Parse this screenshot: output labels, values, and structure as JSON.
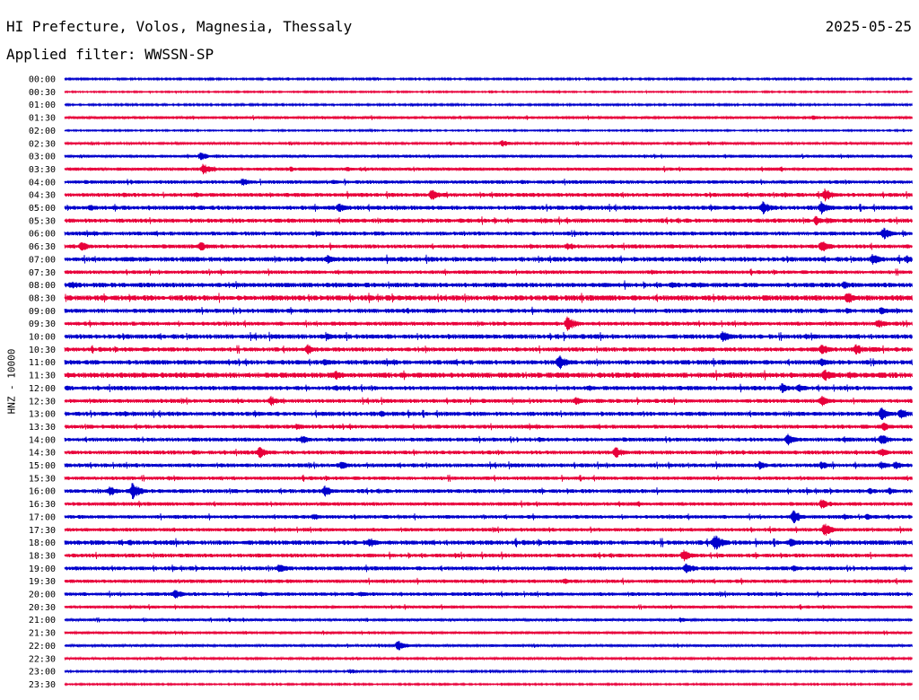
{
  "header": {
    "title": "HI Prefecture, Volos, Magnesia, Thessaly",
    "date": "2025-05-25",
    "filter": "Applied filter: WWSSN-SP"
  },
  "chart_data": {
    "type": "line",
    "title": "HI Prefecture, Volos, Magnesia, Thessaly",
    "ylabel": "HNZ - 10000",
    "xlabel": "",
    "colors": [
      "#0000cc",
      "#e8003a"
    ],
    "rows": [
      "00:00",
      "00:30",
      "01:00",
      "01:30",
      "02:00",
      "02:30",
      "03:00",
      "03:30",
      "04:00",
      "04:30",
      "05:00",
      "05:30",
      "06:00",
      "06:30",
      "07:00",
      "07:30",
      "08:00",
      "08:30",
      "09:00",
      "09:30",
      "10:00",
      "10:30",
      "11:00",
      "11:30",
      "12:00",
      "12:30",
      "13:00",
      "13:30",
      "14:00",
      "14:30",
      "15:00",
      "15:30",
      "16:00",
      "16:30",
      "17:00",
      "17:30",
      "18:00",
      "18:30",
      "19:00",
      "19:30",
      "20:00",
      "20:30",
      "21:00",
      "21:30",
      "22:00",
      "22:30",
      "23:00",
      "23:30"
    ],
    "row_duration_minutes": 30,
    "noise": [
      1.0,
      0.8,
      1.0,
      1.5,
      0.8,
      1.2,
      1.6,
      1.8,
      2.0,
      2.2,
      2.4,
      2.4,
      2.2,
      2.2,
      2.6,
      2.0,
      2.6,
      3.0,
      2.4,
      2.2,
      2.6,
      2.4,
      2.6,
      3.0,
      2.4,
      2.2,
      2.4,
      2.2,
      2.2,
      2.2,
      2.2,
      2.0,
      2.2,
      2.0,
      2.0,
      2.0,
      2.6,
      2.2,
      2.2,
      2.0,
      2.0,
      1.6,
      1.4,
      1.4,
      1.4,
      1.2,
      1.0,
      0.9
    ],
    "events": [
      [],
      [],
      [],
      [
        [
          26.5,
          3
        ]
      ],
      [],
      [
        [
          15.5,
          4
        ]
      ],
      [
        [
          4.8,
          5
        ]
      ],
      [
        [
          4.9,
          7
        ],
        [
          8.0,
          3
        ],
        [
          10.0,
          3
        ]
      ],
      [
        [
          6.3,
          5
        ],
        [
          9.5,
          3
        ]
      ],
      [
        [
          2.1,
          3
        ],
        [
          13.0,
          7
        ],
        [
          16.5,
          3
        ],
        [
          25.5,
          3
        ],
        [
          26.9,
          8
        ]
      ],
      [
        [
          0.9,
          4
        ],
        [
          4.5,
          3
        ],
        [
          9.7,
          6
        ],
        [
          24.7,
          8
        ],
        [
          26.8,
          8
        ]
      ],
      [
        [
          14.0,
          3
        ],
        [
          17.0,
          3
        ],
        [
          26.6,
          6
        ],
        [
          27.0,
          4
        ]
      ],
      [
        [
          9.0,
          3
        ],
        [
          11.0,
          3
        ],
        [
          29.0,
          7
        ]
      ],
      [
        [
          0.6,
          6
        ],
        [
          4.8,
          6
        ],
        [
          16.5,
          3
        ],
        [
          17.8,
          4
        ],
        [
          26.8,
          8
        ]
      ],
      [
        [
          9.3,
          6
        ],
        [
          28.6,
          7
        ],
        [
          29.8,
          5
        ]
      ],
      [
        [
          20.8,
          3
        ]
      ],
      [
        [
          0.2,
          5
        ],
        [
          9.5,
          3
        ],
        [
          21.5,
          4
        ],
        [
          22.5,
          4
        ],
        [
          27.6,
          5
        ]
      ],
      [
        [
          27.7,
          8
        ]
      ],
      [
        [
          12.0,
          3
        ],
        [
          27.7,
          4
        ],
        [
          28.9,
          5
        ]
      ],
      [
        [
          9.5,
          3
        ],
        [
          17.8,
          9
        ],
        [
          28.8,
          6
        ]
      ],
      [
        [
          9.3,
          4
        ],
        [
          23.3,
          7
        ]
      ],
      [
        [
          8.6,
          6
        ],
        [
          26.8,
          7
        ],
        [
          28.0,
          7
        ],
        [
          28.6,
          4
        ]
      ],
      [
        [
          3.3,
          3
        ],
        [
          9.2,
          4
        ],
        [
          10.0,
          3
        ],
        [
          17.5,
          9
        ],
        [
          26.8,
          6
        ]
      ],
      [
        [
          9.6,
          6
        ],
        [
          26.9,
          8
        ],
        [
          27.8,
          5
        ]
      ],
      [
        [
          9.6,
          4
        ],
        [
          25.4,
          6
        ],
        [
          26.0,
          5
        ]
      ],
      [
        [
          7.3,
          6
        ],
        [
          14.8,
          3
        ],
        [
          18.1,
          5
        ],
        [
          18.9,
          3
        ],
        [
          26.8,
          7
        ]
      ],
      [
        [
          11.2,
          4
        ],
        [
          28.9,
          8
        ],
        [
          29.6,
          7
        ]
      ],
      [
        [
          8.2,
          4
        ],
        [
          29.0,
          5
        ]
      ],
      [
        [
          8.4,
          5
        ],
        [
          16.8,
          3
        ],
        [
          25.6,
          7
        ],
        [
          27.6,
          4
        ],
        [
          28.9,
          7
        ]
      ],
      [
        [
          6.9,
          7
        ],
        [
          19.5,
          7
        ],
        [
          28.9,
          5
        ]
      ],
      [
        [
          9.8,
          5
        ],
        [
          24.6,
          5
        ],
        [
          26.8,
          5
        ],
        [
          28.9,
          5
        ],
        [
          29.4,
          5
        ]
      ],
      [],
      [
        [
          1.6,
          6
        ],
        [
          2.4,
          10
        ],
        [
          9.2,
          7
        ],
        [
          28.5,
          4
        ],
        [
          29.2,
          4
        ]
      ],
      [
        [
          26.8,
          6
        ]
      ],
      [
        [
          8.8,
          4
        ],
        [
          25.8,
          8
        ],
        [
          27.6,
          4
        ],
        [
          28.4,
          4
        ]
      ],
      [
        [
          26.9,
          8
        ]
      ],
      [
        [
          2.3,
          4
        ],
        [
          10.8,
          6
        ],
        [
          23.0,
          10
        ],
        [
          25.7,
          5
        ]
      ],
      [
        [
          21.9,
          7
        ]
      ],
      [
        [
          7.6,
          6
        ],
        [
          22.0,
          7
        ],
        [
          25.8,
          4
        ]
      ],
      [
        [
          17.7,
          4
        ]
      ],
      [
        [
          3.9,
          6
        ],
        [
          10.5,
          3
        ]
      ],
      [],
      [
        [
          21.8,
          3
        ]
      ],
      [],
      [
        [
          11.8,
          6
        ]
      ],
      [],
      [
        [
          10.1,
          3
        ]
      ],
      []
    ]
  }
}
